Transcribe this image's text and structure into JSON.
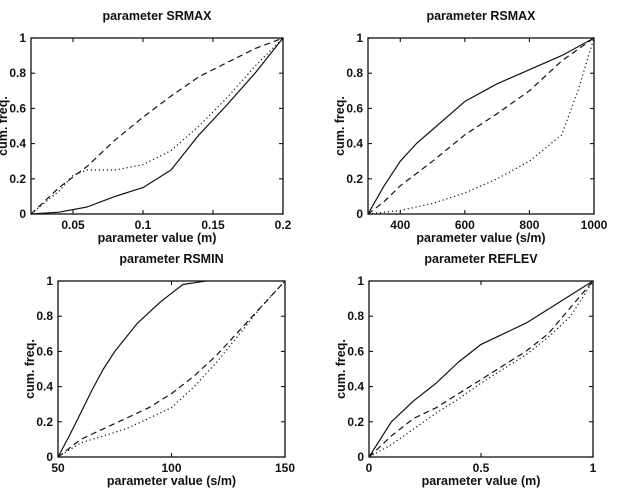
{
  "chart_data": [
    {
      "type": "line",
      "title": "parameter SRMAX",
      "xlabel": "parameter value (m)",
      "ylabel": "cum. freq.",
      "xlim": [
        0.02,
        0.2
      ],
      "ylim": [
        0,
        1
      ],
      "xticks": [
        0.05,
        0.1,
        0.15,
        0.2
      ],
      "xtick_labels": [
        "0.05",
        "0.1",
        "0.15",
        "0.2"
      ],
      "yticks": [
        0,
        0.2,
        0.4,
        0.6,
        0.8,
        1
      ],
      "ytick_labels": [
        "0",
        "0.2",
        "0.4",
        "0.6",
        "0.8",
        "1"
      ],
      "series": [
        {
          "style": "solid",
          "x": [
            0.02,
            0.04,
            0.06,
            0.08,
            0.1,
            0.12,
            0.14,
            0.16,
            0.18,
            0.2
          ],
          "y": [
            0,
            0.01,
            0.04,
            0.1,
            0.15,
            0.25,
            0.45,
            0.62,
            0.8,
            1.0
          ]
        },
        {
          "style": "dashed",
          "x": [
            0.02,
            0.04,
            0.06,
            0.08,
            0.1,
            0.12,
            0.14,
            0.16,
            0.18,
            0.2
          ],
          "y": [
            0,
            0.15,
            0.27,
            0.42,
            0.55,
            0.67,
            0.78,
            0.86,
            0.94,
            1.0
          ]
        },
        {
          "style": "dotted",
          "x": [
            0.02,
            0.04,
            0.05,
            0.06,
            0.08,
            0.1,
            0.12,
            0.14,
            0.16,
            0.18,
            0.2
          ],
          "y": [
            0,
            0.13,
            0.22,
            0.25,
            0.25,
            0.28,
            0.36,
            0.5,
            0.66,
            0.84,
            1.0
          ]
        }
      ]
    },
    {
      "type": "line",
      "title": "parameter RSMAX",
      "xlabel": "parameter value (s/m)",
      "ylabel": "cum. freq.",
      "xlim": [
        300,
        1000
      ],
      "ylim": [
        0,
        1
      ],
      "xticks": [
        400,
        600,
        800,
        1000
      ],
      "xtick_labels": [
        "400",
        "600",
        "800",
        "1000"
      ],
      "yticks": [
        0,
        0.2,
        0.4,
        0.6,
        0.8,
        1
      ],
      "ytick_labels": [
        "0",
        "0.2",
        "0.4",
        "0.6",
        "0.8",
        "1"
      ],
      "series": [
        {
          "style": "solid",
          "x": [
            300,
            350,
            400,
            450,
            500,
            600,
            700,
            800,
            900,
            1000
          ],
          "y": [
            0,
            0.16,
            0.3,
            0.4,
            0.48,
            0.64,
            0.74,
            0.82,
            0.9,
            1.0
          ]
        },
        {
          "style": "dashed",
          "x": [
            300,
            350,
            400,
            500,
            600,
            700,
            800,
            900,
            1000
          ],
          "y": [
            0,
            0.07,
            0.16,
            0.3,
            0.45,
            0.57,
            0.7,
            0.87,
            1.0
          ]
        },
        {
          "style": "dotted",
          "x": [
            300,
            400,
            500,
            600,
            700,
            800,
            900,
            950,
            1000
          ],
          "y": [
            0,
            0.02,
            0.06,
            0.12,
            0.2,
            0.3,
            0.45,
            0.7,
            1.0
          ]
        }
      ]
    },
    {
      "type": "line",
      "title": "parameter RSMIN",
      "xlabel": "parameter value (s/m)",
      "ylabel": "cum. freq.",
      "xlim": [
        50,
        150
      ],
      "ylim": [
        0,
        1
      ],
      "xticks": [
        50,
        100,
        150
      ],
      "xtick_labels": [
        "50",
        "100",
        "150"
      ],
      "yticks": [
        0,
        0.2,
        0.4,
        0.6,
        0.8,
        1
      ],
      "ytick_labels": [
        "0",
        "0.2",
        "0.4",
        "0.6",
        "0.8",
        "1"
      ],
      "series": [
        {
          "style": "solid",
          "x": [
            50,
            55,
            60,
            65,
            70,
            75,
            80,
            85,
            90,
            95,
            100,
            105,
            110,
            115
          ],
          "y": [
            0,
            0.12,
            0.25,
            0.38,
            0.5,
            0.6,
            0.68,
            0.76,
            0.82,
            0.88,
            0.93,
            0.98,
            0.99,
            1.0
          ]
        },
        {
          "style": "dashed",
          "x": [
            50,
            60,
            70,
            80,
            90,
            100,
            110,
            120,
            130,
            140,
            150
          ],
          "y": [
            0,
            0.1,
            0.16,
            0.22,
            0.28,
            0.36,
            0.46,
            0.58,
            0.72,
            0.86,
            1.0
          ]
        },
        {
          "style": "dotted",
          "x": [
            50,
            60,
            70,
            80,
            90,
            100,
            110,
            120,
            130,
            140,
            150
          ],
          "y": [
            0,
            0.08,
            0.12,
            0.16,
            0.22,
            0.28,
            0.4,
            0.54,
            0.7,
            0.86,
            1.0
          ]
        }
      ]
    },
    {
      "type": "line",
      "title": "parameter REFLEV",
      "xlabel": "parameter value (m)",
      "ylabel": "cum. freq.",
      "xlim": [
        0,
        1
      ],
      "ylim": [
        0,
        1
      ],
      "xticks": [
        0,
        0.5,
        1
      ],
      "xtick_labels": [
        "0",
        "0.5",
        "1"
      ],
      "yticks": [
        0,
        0.2,
        0.4,
        0.6,
        0.8,
        1
      ],
      "ytick_labels": [
        "0",
        "0.2",
        "0.4",
        "0.6",
        "0.8",
        "1"
      ],
      "series": [
        {
          "style": "solid",
          "x": [
            0,
            0.1,
            0.2,
            0.3,
            0.4,
            0.5,
            0.6,
            0.7,
            0.8,
            0.9,
            1.0
          ],
          "y": [
            0,
            0.2,
            0.32,
            0.42,
            0.54,
            0.64,
            0.7,
            0.76,
            0.84,
            0.92,
            1.0
          ]
        },
        {
          "style": "dashed",
          "x": [
            0,
            0.1,
            0.2,
            0.3,
            0.4,
            0.5,
            0.6,
            0.7,
            0.8,
            0.9,
            1.0
          ],
          "y": [
            0,
            0.12,
            0.22,
            0.28,
            0.36,
            0.44,
            0.52,
            0.6,
            0.7,
            0.85,
            1.0
          ]
        },
        {
          "style": "dotted",
          "x": [
            0,
            0.1,
            0.2,
            0.3,
            0.4,
            0.5,
            0.6,
            0.7,
            0.8,
            0.9,
            1.0
          ],
          "y": [
            0,
            0.07,
            0.16,
            0.25,
            0.33,
            0.42,
            0.5,
            0.58,
            0.68,
            0.8,
            1.0
          ]
        }
      ]
    }
  ]
}
